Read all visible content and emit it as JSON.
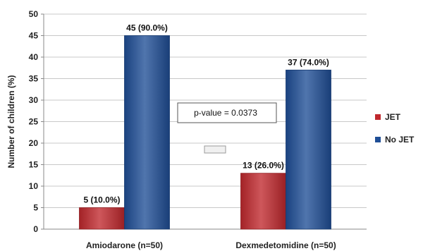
{
  "chart_data": {
    "type": "bar",
    "categories": [
      "Amiodarone (n=50)",
      "Dexmedetomidine (n=50)"
    ],
    "series": [
      {
        "name": "JET",
        "values": [
          5,
          13
        ],
        "labels": [
          "5 (10.0%)",
          "13 (26.0%)"
        ],
        "color": "#c0282d"
      },
      {
        "name": "No JET",
        "values": [
          45,
          37
        ],
        "labels": [
          "45 (90.0%)",
          "37 (74.0%)"
        ],
        "color": "#1f4e96"
      }
    ],
    "ylabel": "Number of children (%)",
    "ylim": [
      0,
      50
    ],
    "yticks": [
      0,
      5,
      10,
      15,
      20,
      25,
      30,
      35,
      40,
      45,
      50
    ],
    "grid": true,
    "legend": "right",
    "annotation": "p-value = 0.0373"
  }
}
